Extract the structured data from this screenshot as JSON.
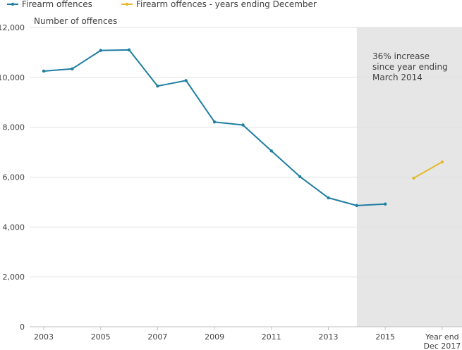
{
  "chart_data": {
    "type": "line",
    "title": "",
    "xlabel": "",
    "ylabel": "Number of offences",
    "ylim": [
      0,
      12000
    ],
    "y_ticks": [
      0,
      2000,
      4000,
      6000,
      8000,
      10000,
      12000
    ],
    "y_tick_labels": [
      "0",
      "2,000",
      "4,000",
      "6,000",
      "8,000",
      "10,000",
      "12,000"
    ],
    "x_tick_labels": [
      {
        "x": 2003,
        "lines": [
          "2003"
        ]
      },
      {
        "x": 2005,
        "lines": [
          "2005"
        ]
      },
      {
        "x": 2007,
        "lines": [
          "2007"
        ]
      },
      {
        "x": 2009,
        "lines": [
          "2009"
        ]
      },
      {
        "x": 2011,
        "lines": [
          "2011"
        ]
      },
      {
        "x": 2013,
        "lines": [
          "2013"
        ]
      },
      {
        "x": 2015,
        "lines": [
          "2015"
        ]
      },
      {
        "x": 2017,
        "lines": [
          "Year end",
          "Dec 2017"
        ]
      }
    ],
    "legend_position": "top-left",
    "grid": true,
    "series": [
      {
        "name": "Firearm offences",
        "color": "#1f7ea1",
        "points": [
          {
            "x": 2003,
            "y": 10250
          },
          {
            "x": 2004,
            "y": 10340
          },
          {
            "x": 2005,
            "y": 11080
          },
          {
            "x": 2006,
            "y": 11100
          },
          {
            "x": 2007,
            "y": 9650
          },
          {
            "x": 2008,
            "y": 9870
          },
          {
            "x": 2009,
            "y": 8210
          },
          {
            "x": 2010,
            "y": 8090
          },
          {
            "x": 2011,
            "y": 7050
          },
          {
            "x": 2012,
            "y": 6020
          },
          {
            "x": 2013,
            "y": 5170
          },
          {
            "x": 2014,
            "y": 4860
          },
          {
            "x": 2015,
            "y": 4920
          }
        ]
      },
      {
        "name": "Firearm offences - years ending December",
        "color": "#e3b92b",
        "points": [
          {
            "x": 2016,
            "y": 5960
          },
          {
            "x": 2017,
            "y": 6610
          }
        ]
      }
    ],
    "shaded_region": {
      "x_start": 2014,
      "x_end": 2017.5,
      "color": "#e6e6e6"
    },
    "annotation": {
      "lines": [
        "36% increase",
        "since year ending",
        "March 2014"
      ]
    }
  }
}
